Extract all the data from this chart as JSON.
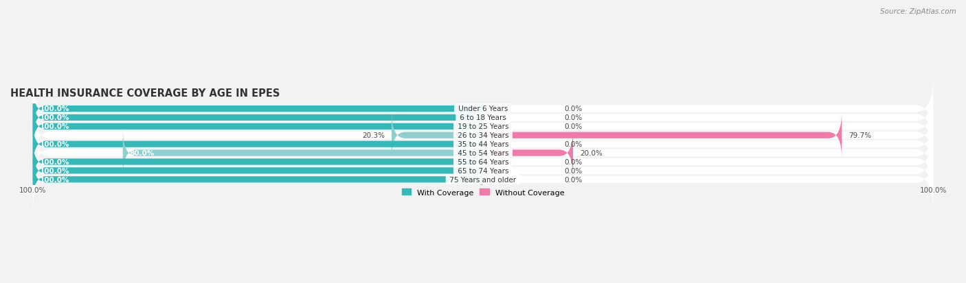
{
  "title": "HEALTH INSURANCE COVERAGE BY AGE IN EPES",
  "source": "Source: ZipAtlas.com",
  "categories": [
    "Under 6 Years",
    "6 to 18 Years",
    "19 to 25 Years",
    "26 to 34 Years",
    "35 to 44 Years",
    "45 to 54 Years",
    "55 to 64 Years",
    "65 to 74 Years",
    "75 Years and older"
  ],
  "with_coverage": [
    100.0,
    100.0,
    100.0,
    20.3,
    100.0,
    80.0,
    100.0,
    100.0,
    100.0
  ],
  "without_coverage": [
    0.0,
    0.0,
    0.0,
    79.7,
    0.0,
    20.0,
    0.0,
    0.0,
    0.0
  ],
  "color_with": "#35b8b8",
  "color_without": "#f07aaa",
  "color_with_light": "#8ecfcf",
  "bg_color": "#f2f2f2",
  "bar_row_bg": "#ffffff",
  "title_fontsize": 10.5,
  "source_fontsize": 7.5,
  "label_fontsize": 7.5,
  "bar_label_fontsize": 7.5,
  "total_range": 100
}
